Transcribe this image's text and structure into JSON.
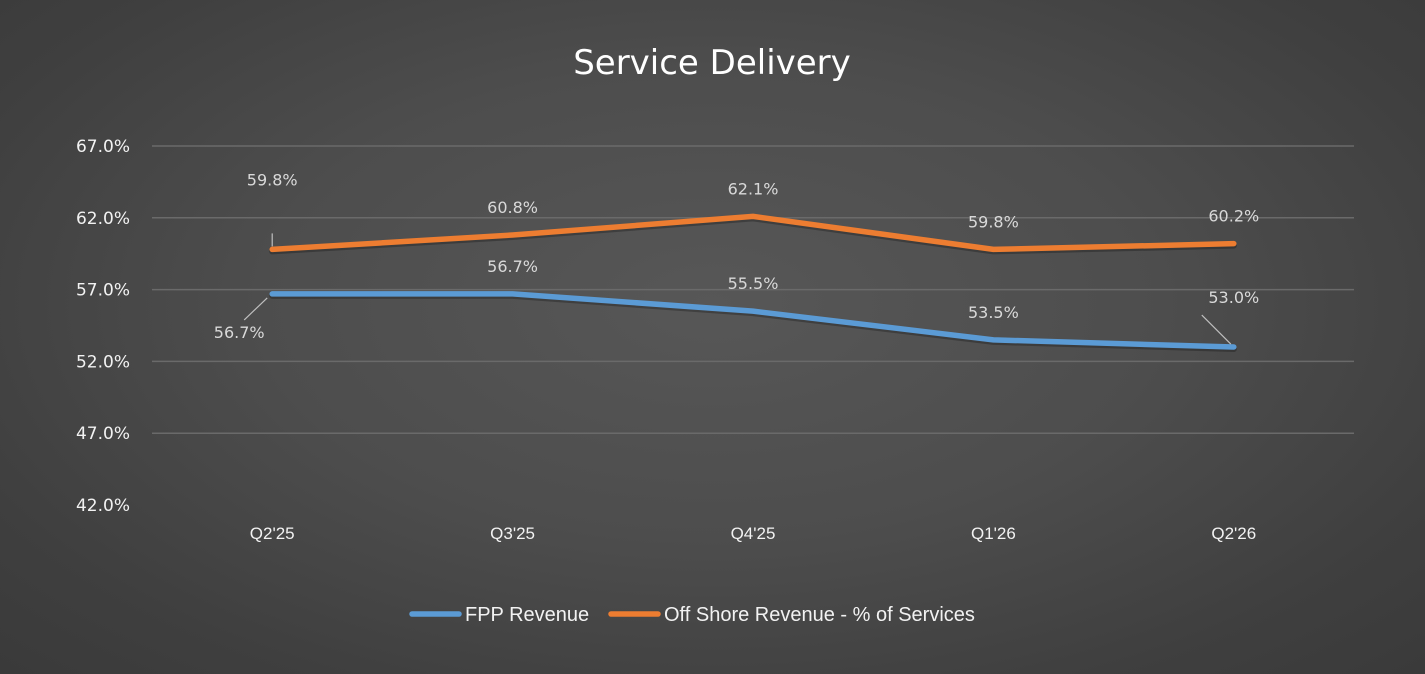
{
  "chart_data": {
    "type": "line",
    "title": "Service Delivery",
    "xlabel": "",
    "ylabel": "",
    "categories": [
      "Q2'25",
      "Q3'25",
      "Q4'25",
      "Q1'26",
      "Q2'26"
    ],
    "series": [
      {
        "name": "FPP Revenue",
        "color": "#5b9bd5",
        "values": [
          56.7,
          56.7,
          55.5,
          53.5,
          53.0
        ],
        "labels": [
          "56.7%",
          "56.7%",
          "55.5%",
          "53.5%",
          "53.0%"
        ]
      },
      {
        "name": "Off Shore Revenue - % of Services",
        "color": "#ed7d31",
        "values": [
          59.8,
          60.8,
          62.1,
          59.8,
          60.2
        ],
        "labels": [
          "59.8%",
          "60.8%",
          "62.1%",
          "59.8%",
          "60.2%"
        ]
      }
    ],
    "ylim": [
      42.0,
      67.0
    ],
    "yticks": [
      67.0,
      62.0,
      57.0,
      52.0,
      47.0,
      42.0
    ],
    "ytick_labels": [
      "67.0%",
      "62.0%",
      "57.0%",
      "52.0%",
      "47.0%",
      "42.0%"
    ],
    "grid": true,
    "legend": "bottom-center"
  }
}
